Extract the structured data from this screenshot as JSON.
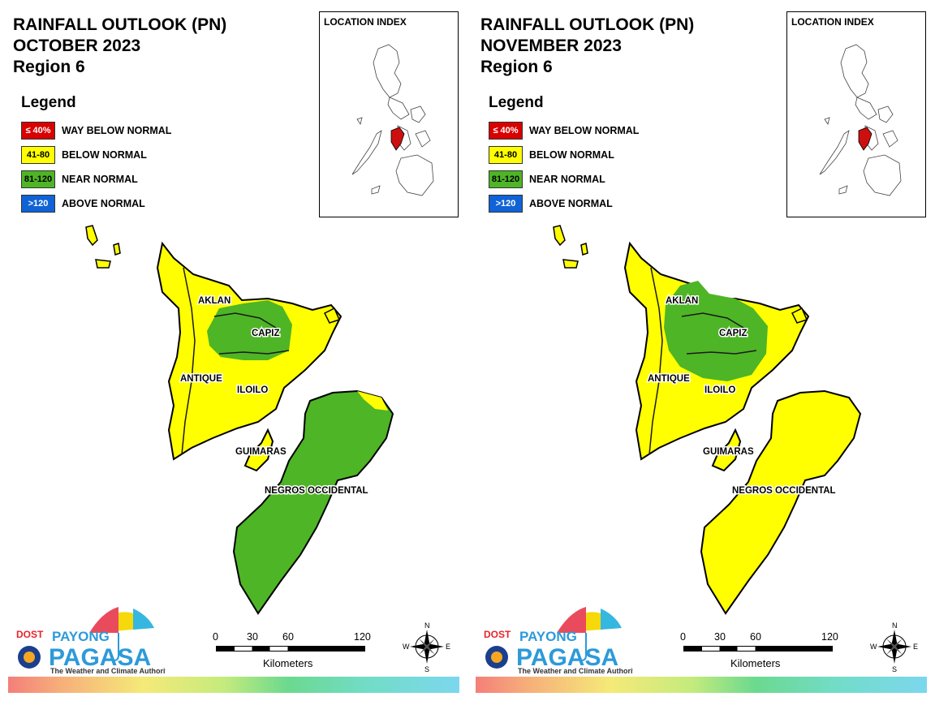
{
  "legend": {
    "title": "Legend",
    "items": [
      {
        "range": "≤ 40%",
        "label": "WAY BELOW NORMAL",
        "color": "#d90000",
        "text_color": "#ffffff"
      },
      {
        "range": "41-80",
        "label": "BELOW NORMAL",
        "color": "#ffff00",
        "text_color": "#000000"
      },
      {
        "range": "81-120",
        "label": "NEAR NORMAL",
        "color": "#4eb526",
        "text_color": "#000000"
      },
      {
        "range": ">120",
        "label": "ABOVE NORMAL",
        "color": "#0f63d6",
        "text_color": "#ffffff"
      }
    ]
  },
  "location_index": {
    "title": "LOCATION INDEX",
    "highlight_color": "#cc1010"
  },
  "provinces": [
    "AKLAN",
    "CAPIZ",
    "ANTIQUE",
    "ILOILO",
    "GUIMARAS",
    "NEGROS OCCIDENTAL"
  ],
  "scale": {
    "ticks": [
      "0",
      "30",
      "60",
      "120"
    ],
    "unit": "Kilometers"
  },
  "compass": {
    "n": "N",
    "s": "S",
    "e": "E",
    "w": "W"
  },
  "logo": {
    "dost": "DOST",
    "payong": "PAYONG",
    "pagasa": "PAGASA",
    "tagline": "The Weather and Climate Authority"
  },
  "colors": {
    "below_normal": "#ffff00",
    "near_normal": "#4eb526",
    "boundary": "#000000"
  },
  "maps": [
    {
      "title_line1": "RAINFALL OUTLOOK (PN)",
      "title_line2": "OCTOBER 2023",
      "title_line3": "Region 6",
      "near_normal_areas": [
        "AKLAN",
        "CAPIZ",
        "ILOILO",
        "NEGROS OCCIDENTAL"
      ],
      "below_normal_areas": [
        "AKLAN",
        "ANTIQUE",
        "ILOILO",
        "GUIMARAS",
        "NEGROS OCCIDENTAL"
      ]
    },
    {
      "title_line1": "RAINFALL OUTLOOK (PN)",
      "title_line2": "NOVEMBER 2023",
      "title_line3": "Region 6",
      "near_normal_areas": [
        "AKLAN",
        "CAPIZ",
        "ILOILO"
      ],
      "below_normal_areas": [
        "AKLAN",
        "ANTIQUE",
        "ILOILO",
        "GUIMARAS",
        "NEGROS OCCIDENTAL"
      ]
    }
  ]
}
